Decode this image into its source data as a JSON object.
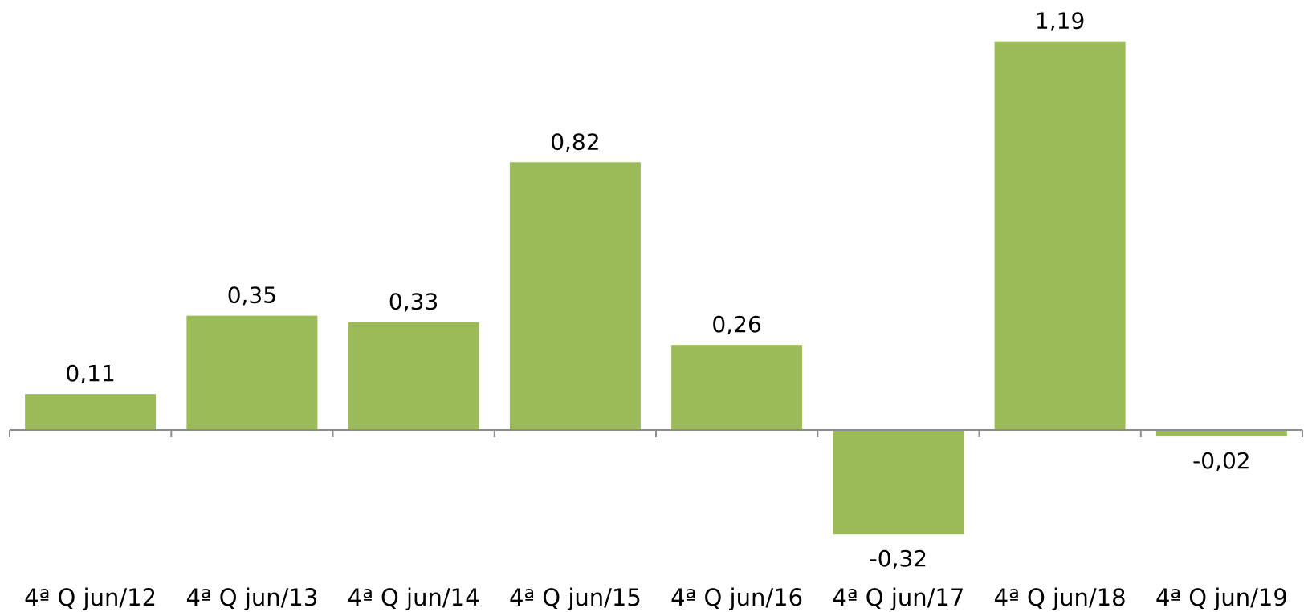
{
  "chart_data": {
    "type": "bar",
    "categories": [
      "4ª Q jun/12",
      "4ª Q jun/13",
      "4ª Q jun/14",
      "4ª Q jun/15",
      "4ª Q jun/16",
      "4ª Q jun/17",
      "4ª Q jun/18",
      "4ª Q jun/19"
    ],
    "values": [
      0.11,
      0.35,
      0.33,
      0.82,
      0.26,
      -0.32,
      1.19,
      -0.02
    ],
    "data_labels": [
      "0,11",
      "0,35",
      "0,33",
      "0,82",
      "0,26",
      "-0,32",
      "1,19",
      "-0,02"
    ],
    "ylim": [
      -0.42,
      1.32
    ],
    "grid": false,
    "legend": "none",
    "colors": {
      "bar": "#9bbb59",
      "axis": "#8c8c8c",
      "text": "#000000"
    }
  }
}
